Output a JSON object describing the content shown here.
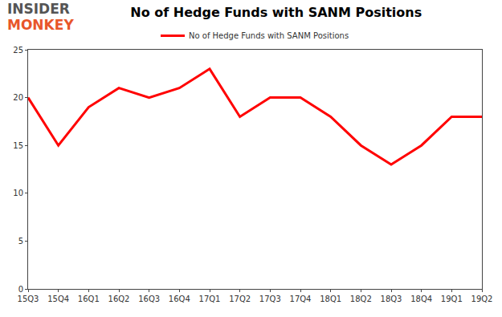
{
  "chart_data": {
    "type": "line",
    "title": "No of Hedge Funds with SANM Positions",
    "annotations": [
      "INSIDER",
      "MONKEY"
    ],
    "categories": [
      "15Q3",
      "15Q4",
      "16Q1",
      "16Q2",
      "16Q3",
      "16Q4",
      "17Q1",
      "17Q2",
      "17Q3",
      "17Q4",
      "18Q1",
      "18Q2",
      "18Q3",
      "18Q4",
      "19Q1",
      "19Q2"
    ],
    "series": [
      {
        "name": "No of Hedge Funds with SANM Positions",
        "color": "#ff0000",
        "values": [
          20,
          15,
          19,
          21,
          20,
          21,
          23,
          18,
          20,
          20,
          18,
          15,
          13,
          15,
          18,
          18
        ]
      }
    ],
    "ylim": [
      0,
      25
    ],
    "yticks": [
      0,
      5,
      10,
      15,
      20,
      25
    ],
    "grid": false,
    "legend": "top"
  }
}
